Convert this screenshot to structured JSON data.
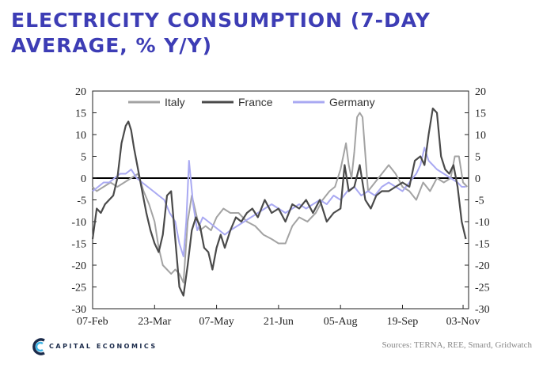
{
  "title": "ELECTRICITY CONSUMPTION (7-DAY AVERAGE, % Y/Y)",
  "source": "Sources: TERNA, REE, Smard, Gridwatch",
  "logo": {
    "text": "CAPITAL ECONOMICS"
  },
  "chart_data": {
    "type": "line",
    "title": "ELECTRICITY CONSUMPTION (7-DAY AVERAGE, % Y/Y)",
    "xlabel": "",
    "ylabel": "",
    "ylim": [
      -30,
      20
    ],
    "yticks": [
      20,
      15,
      10,
      5,
      0,
      -5,
      -10,
      -15,
      -20,
      -25,
      -30
    ],
    "xlim": [
      0,
      273
    ],
    "x_tick_labels": [
      "07-Feb",
      "23-Mar",
      "07-May",
      "21-Jun",
      "05-Aug",
      "19-Sep",
      "03-Nov"
    ],
    "x_tick_days": [
      0,
      45,
      90,
      135,
      180,
      225,
      269
    ],
    "legend": [
      "Italy",
      "France",
      "Germany"
    ],
    "colors": {
      "Italy": "#a3a3a3",
      "France": "#4a4a4a",
      "Germany": "#a9a9f2"
    },
    "series": [
      {
        "name": "Italy",
        "x": [
          0,
          3,
          8,
          13,
          18,
          23,
          28,
          33,
          37,
          41,
          45,
          48,
          51,
          54,
          57,
          60,
          63,
          66,
          69,
          72,
          75,
          78,
          82,
          86,
          90,
          95,
          100,
          106,
          112,
          118,
          124,
          130,
          135,
          140,
          145,
          150,
          156,
          162,
          167,
          172,
          176,
          180,
          184,
          186,
          188,
          190,
          192,
          194,
          196,
          200,
          205,
          210,
          215,
          220,
          225,
          230,
          235,
          240,
          245,
          250,
          255,
          260,
          263,
          266,
          269,
          272
        ],
        "values": [
          -2,
          -3,
          -2,
          -1,
          -2,
          -1,
          0,
          1,
          -3,
          -6,
          -10,
          -16,
          -20,
          -21,
          -22,
          -21,
          -22,
          -24,
          -10,
          -4,
          -8,
          -12,
          -11,
          -12,
          -9,
          -7,
          -8,
          -8,
          -10,
          -11,
          -13,
          -14,
          -15,
          -15,
          -11,
          -9,
          -10,
          -8,
          -5,
          -3,
          -2,
          2,
          8,
          3,
          0,
          6,
          14,
          15,
          14,
          -3,
          -1,
          1,
          3,
          1,
          -2,
          -3,
          -5,
          -1,
          -3,
          0,
          -1,
          0,
          5,
          5,
          -1,
          -2
        ]
      },
      {
        "name": "France",
        "x": [
          0,
          3,
          6,
          9,
          12,
          15,
          18,
          21,
          24,
          26,
          28,
          30,
          33,
          36,
          39,
          42,
          45,
          48,
          51,
          54,
          57,
          60,
          63,
          66,
          69,
          72,
          75,
          78,
          81,
          84,
          87,
          90,
          93,
          96,
          100,
          104,
          108,
          112,
          116,
          120,
          125,
          130,
          135,
          140,
          145,
          150,
          155,
          160,
          165,
          170,
          175,
          180,
          183,
          186,
          190,
          194,
          198,
          202,
          206,
          210,
          215,
          220,
          225,
          230,
          234,
          238,
          241,
          244,
          247,
          250,
          253,
          256,
          259,
          262,
          265,
          268,
          271
        ],
        "values": [
          -14,
          -7,
          -8,
          -6,
          -5,
          -4,
          0,
          8,
          12,
          13,
          11,
          7,
          2,
          -3,
          -8,
          -12,
          -15,
          -17,
          -13,
          -4,
          -3,
          -14,
          -25,
          -27,
          -20,
          -12,
          -9,
          -11,
          -16,
          -17,
          -21,
          -16,
          -13,
          -16,
          -12,
          -9,
          -10,
          -8,
          -7,
          -9,
          -5,
          -8,
          -7,
          -10,
          -6,
          -7,
          -5,
          -8,
          -5,
          -10,
          -8,
          -7,
          3,
          -3,
          -2,
          3,
          -5,
          -7,
          -4,
          -3,
          -3,
          -2,
          -1,
          -2,
          4,
          5,
          3,
          10,
          16,
          15,
          5,
          2,
          1,
          3,
          -2,
          -10,
          -14
        ]
      },
      {
        "name": "Germany",
        "x": [
          0,
          4,
          8,
          12,
          16,
          20,
          24,
          28,
          32,
          36,
          40,
          44,
          48,
          52,
          56,
          60,
          63,
          66,
          68,
          70,
          73,
          76,
          80,
          84,
          88,
          92,
          96,
          100,
          105,
          110,
          115,
          120,
          125,
          130,
          135,
          140,
          145,
          150,
          155,
          160,
          165,
          170,
          175,
          180,
          185,
          190,
          195,
          200,
          205,
          210,
          215,
          220,
          225,
          230,
          235,
          238,
          241,
          244,
          247,
          250,
          255,
          260,
          265,
          268,
          271
        ],
        "values": [
          -3,
          -2,
          -1,
          -1,
          0,
          1,
          1,
          2,
          0,
          -1,
          -2,
          -3,
          -4,
          -5,
          -8,
          -10,
          -15,
          -18,
          -10,
          4,
          -6,
          -12,
          -9,
          -10,
          -11,
          -12,
          -13,
          -12,
          -11,
          -10,
          -9,
          -8,
          -7,
          -6,
          -7,
          -8,
          -7,
          -6,
          -7,
          -6,
          -5,
          -6,
          -4,
          -5,
          -3,
          -2,
          -4,
          -3,
          -4,
          -2,
          -1,
          -2,
          -3,
          -1,
          1,
          3,
          7,
          4,
          3,
          2,
          1,
          0,
          -1,
          -2,
          -2
        ]
      }
    ]
  }
}
